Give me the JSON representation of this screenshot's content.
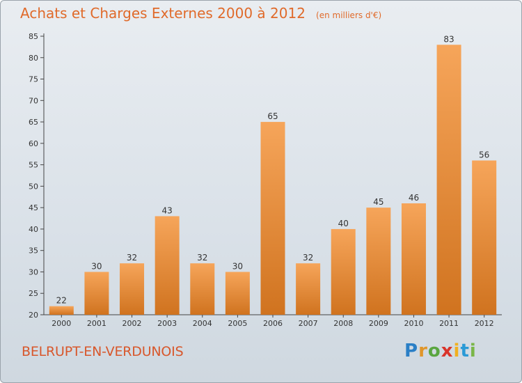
{
  "header": {
    "title": "Achats et Charges Externes 2000 à 2012",
    "unit": "(en milliers d'€)"
  },
  "footer": {
    "commune": "BELRUPT-EN-VERDUNOIS",
    "logo_letters": [
      "P",
      "r",
      "o",
      "x",
      "i",
      "t",
      "i"
    ],
    "logo_colors": [
      "#2a7fc6",
      "#e0962b",
      "#5aa640",
      "#d9342b",
      "#f0b020",
      "#2a9ad6",
      "#7ab648"
    ]
  },
  "colors": {
    "bar_top": "#f6a55a",
    "bar_bottom": "#d0731f",
    "title": "#e06a2a",
    "axis": "#555555"
  },
  "chart_data": {
    "type": "bar",
    "title": "Achats et Charges Externes 2000 à 2012",
    "subtitle": "(en milliers d'€)",
    "categories": [
      "2000",
      "2001",
      "2002",
      "2003",
      "2004",
      "2005",
      "2006",
      "2007",
      "2008",
      "2009",
      "2010",
      "2011",
      "2012"
    ],
    "values": [
      22,
      30,
      32,
      43,
      32,
      30,
      65,
      32,
      40,
      45,
      46,
      83,
      56
    ],
    "ylim": [
      20,
      85
    ],
    "yticks": [
      20,
      25,
      30,
      35,
      40,
      45,
      50,
      55,
      60,
      65,
      70,
      75,
      80,
      85
    ],
    "grid": false,
    "legend": "none"
  }
}
